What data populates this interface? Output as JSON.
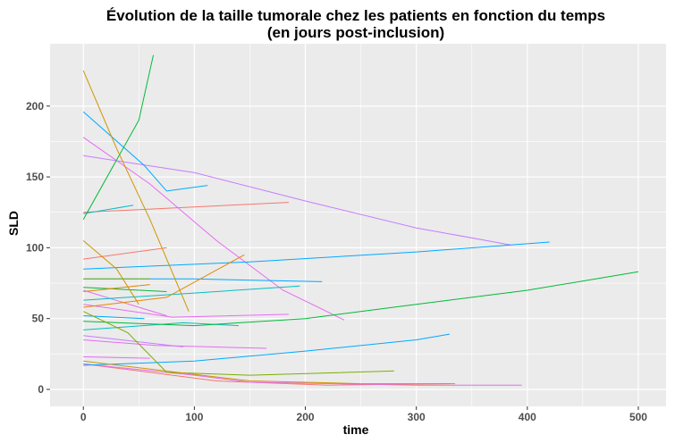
{
  "chart_data": {
    "type": "line",
    "title_line1": "Évolution de la taille tumorale chez les patients en fonction du temps",
    "title_line2": "(en jours post-inclusion)",
    "xlabel": "time",
    "ylabel": "SLD",
    "xlim": [
      -30,
      525
    ],
    "ylim": [
      -12,
      244
    ],
    "xticks": [
      0,
      100,
      200,
      300,
      400,
      500
    ],
    "yticks": [
      0,
      50,
      100,
      150,
      200
    ],
    "grid": true,
    "legend": "none",
    "panel_background": "#ebebeb",
    "series": [
      {
        "color": "#F8766D",
        "points": [
          [
            0,
            92
          ],
          [
            75,
            100
          ]
        ]
      },
      {
        "color": "#F8766D",
        "points": [
          [
            0,
            125
          ],
          [
            185,
            132
          ]
        ]
      },
      {
        "color": "#F8766D",
        "points": [
          [
            0,
            18
          ],
          [
            60,
            12
          ],
          [
            120,
            6
          ],
          [
            220,
            3
          ],
          [
            330,
            4
          ]
        ]
      },
      {
        "color": "#E76BF3",
        "points": [
          [
            0,
            178
          ],
          [
            60,
            145
          ],
          [
            120,
            105
          ],
          [
            180,
            70
          ],
          [
            235,
            49
          ]
        ]
      },
      {
        "color": "#E76BF3",
        "points": [
          [
            0,
            70
          ],
          [
            50,
            58
          ],
          [
            75,
            52
          ]
        ]
      },
      {
        "color": "#E76BF3",
        "points": [
          [
            0,
            60
          ],
          [
            80,
            51
          ],
          [
            185,
            53
          ]
        ]
      },
      {
        "color": "#E76BF3",
        "points": [
          [
            0,
            35
          ],
          [
            65,
            31
          ],
          [
            165,
            29
          ]
        ]
      },
      {
        "color": "#E76BF3",
        "points": [
          [
            0,
            18
          ],
          [
            100,
            10
          ],
          [
            150,
            5
          ],
          [
            300,
            3
          ],
          [
            395,
            3
          ]
        ]
      },
      {
        "color": "#E76BF3",
        "points": [
          [
            0,
            23
          ],
          [
            60,
            22
          ]
        ]
      },
      {
        "color": "#C77CFF",
        "points": [
          [
            0,
            165
          ],
          [
            100,
            153
          ],
          [
            200,
            133
          ],
          [
            300,
            114
          ],
          [
            385,
            102
          ]
        ]
      },
      {
        "color": "#C77CFF",
        "points": [
          [
            0,
            38
          ],
          [
            90,
            30
          ]
        ]
      },
      {
        "color": "#00A9FF",
        "points": [
          [
            0,
            196
          ],
          [
            55,
            158
          ],
          [
            75,
            140
          ],
          [
            112,
            144
          ]
        ]
      },
      {
        "color": "#00A9FF",
        "points": [
          [
            0,
            85
          ],
          [
            150,
            90
          ],
          [
            300,
            97
          ],
          [
            420,
            104
          ]
        ]
      },
      {
        "color": "#00A9FF",
        "points": [
          [
            0,
            78
          ],
          [
            100,
            78
          ],
          [
            215,
            76
          ]
        ]
      },
      {
        "color": "#00A9FF",
        "points": [
          [
            0,
            17
          ],
          [
            100,
            20
          ],
          [
            200,
            27
          ],
          [
            300,
            35
          ],
          [
            330,
            39
          ]
        ]
      },
      {
        "color": "#00A9FF",
        "points": [
          [
            0,
            52
          ],
          [
            55,
            50
          ]
        ]
      },
      {
        "color": "#00BFC4",
        "points": [
          [
            0,
            63
          ],
          [
            100,
            68
          ],
          [
            195,
            73
          ]
        ]
      },
      {
        "color": "#00BFC4",
        "points": [
          [
            0,
            42
          ],
          [
            90,
            47
          ],
          [
            140,
            45
          ]
        ]
      },
      {
        "color": "#00BFC4",
        "points": [
          [
            0,
            124
          ],
          [
            45,
            130
          ]
        ]
      },
      {
        "color": "#00BA38",
        "points": [
          [
            0,
            120
          ],
          [
            50,
            190
          ],
          [
            63,
            236
          ]
        ]
      },
      {
        "color": "#00BA38",
        "points": [
          [
            0,
            48
          ],
          [
            100,
            45
          ],
          [
            200,
            50
          ],
          [
            300,
            60
          ],
          [
            400,
            70
          ],
          [
            500,
            83
          ]
        ]
      },
      {
        "color": "#00BA38",
        "points": [
          [
            0,
            72
          ],
          [
            75,
            69
          ]
        ]
      },
      {
        "color": "#7CAE00",
        "points": [
          [
            0,
            55
          ],
          [
            40,
            40
          ],
          [
            75,
            12
          ],
          [
            150,
            10
          ],
          [
            280,
            13
          ]
        ]
      },
      {
        "color": "#7CAE00",
        "points": [
          [
            0,
            78
          ],
          [
            60,
            78
          ]
        ]
      },
      {
        "color": "#CD9600",
        "points": [
          [
            0,
            225
          ],
          [
            30,
            170
          ],
          [
            60,
            120
          ],
          [
            95,
            55
          ]
        ]
      },
      {
        "color": "#CD9600",
        "points": [
          [
            0,
            105
          ],
          [
            30,
            85
          ],
          [
            50,
            60
          ]
        ]
      },
      {
        "color": "#CD9600",
        "points": [
          [
            0,
            20
          ],
          [
            150,
            6
          ],
          [
            250,
            4
          ],
          [
            335,
            4
          ]
        ]
      },
      {
        "color": "#E58700",
        "points": [
          [
            0,
            58
          ],
          [
            75,
            65
          ],
          [
            145,
            95
          ]
        ]
      },
      {
        "color": "#E58700",
        "points": [
          [
            0,
            69
          ],
          [
            60,
            74
          ]
        ]
      }
    ]
  }
}
